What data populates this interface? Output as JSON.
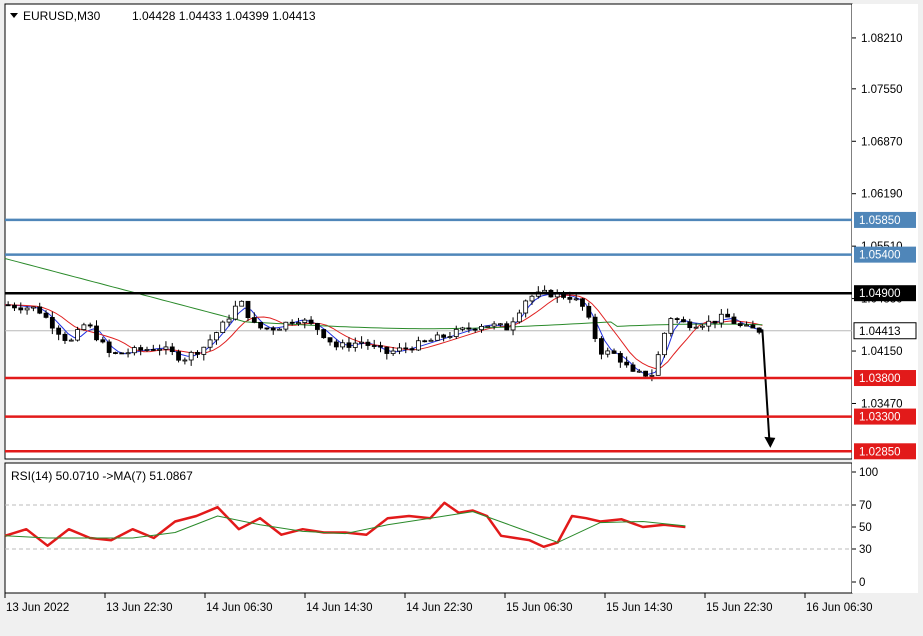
{
  "header": {
    "symbol": "EURUSD,M30",
    "ohlc": "1.04428 1.04433 1.04399 1.04413"
  },
  "rsi_header": "RSI(14) 50.0710  ->MA(7) 51.0867",
  "colors": {
    "resistance_line": "#4f86b9",
    "pivot_line": "#000000",
    "support_line": "#e21a1a",
    "ma_fast": "#1f2fe0",
    "ma_mid": "#e02020",
    "ma_slow": "#2a8a2a",
    "rsi_line": "#e21a1a",
    "rsi_ma": "#2a8a2a"
  },
  "chart_data": [
    {
      "type": "candlestick",
      "symbol": "EURUSD",
      "timeframe": "M30",
      "ylim": [
        1.0275,
        1.0865
      ],
      "y_ticks": [
        "1.08210",
        "1.07550",
        "1.06870",
        "1.06190",
        "1.05510",
        "1.04830",
        "1.04150",
        "1.03470"
      ],
      "x_ticks": [
        "13 Jun 2022",
        "13 Jun 22:30",
        "14 Jun 06:30",
        "14 Jun 14:30",
        "14 Jun 22:30",
        "15 Jun 06:30",
        "15 Jun 14:30",
        "15 Jun 22:30",
        "16 Jun 06:30"
      ],
      "current_price": "1.04413",
      "price_path": [
        [
          0,
          1.0475
        ],
        [
          0.04,
          1.047
        ],
        [
          0.08,
          1.0425
        ],
        [
          0.1,
          1.0452
        ],
        [
          0.13,
          1.041
        ],
        [
          0.16,
          1.0415
        ],
        [
          0.19,
          1.042
        ],
        [
          0.22,
          1.0405
        ],
        [
          0.245,
          1.042
        ],
        [
          0.27,
          1.045
        ],
        [
          0.29,
          1.048
        ],
        [
          0.31,
          1.0445
        ],
        [
          0.335,
          1.0445
        ],
        [
          0.36,
          1.0458
        ],
        [
          0.385,
          1.0445
        ],
        [
          0.41,
          1.042
        ],
        [
          0.44,
          1.0427
        ],
        [
          0.47,
          1.0412
        ],
        [
          0.5,
          1.042
        ],
        [
          0.53,
          1.043
        ],
        [
          0.56,
          1.044
        ],
        [
          0.59,
          1.045
        ],
        [
          0.62,
          1.0445
        ],
        [
          0.645,
          1.0485
        ],
        [
          0.67,
          1.049
        ],
        [
          0.7,
          1.0485
        ],
        [
          0.715,
          1.047
        ],
        [
          0.735,
          1.0415
        ],
        [
          0.755,
          1.041
        ],
        [
          0.775,
          1.0385
        ],
        [
          0.8,
          1.0385
        ],
        [
          0.82,
          1.046
        ],
        [
          0.84,
          1.045
        ],
        [
          0.87,
          1.0452
        ],
        [
          0.89,
          1.046
        ],
        [
          0.91,
          1.0445
        ],
        [
          0.935,
          1.04413
        ]
      ],
      "hlines": [
        {
          "price": 1.0585,
          "label": "1.05850",
          "kind": "resistance"
        },
        {
          "price": 1.054,
          "label": "1.05400",
          "kind": "resistance"
        },
        {
          "price": 1.049,
          "label": "1.04900",
          "kind": "pivot"
        },
        {
          "price": 1.038,
          "label": "1.03800",
          "kind": "support"
        },
        {
          "price": 1.033,
          "label": "1.03300",
          "kind": "support"
        },
        {
          "price": 1.0285,
          "label": "1.02850",
          "kind": "support"
        }
      ],
      "annotation": "down-arrow",
      "grid": false
    },
    {
      "type": "line",
      "indicator": "RSI(14)",
      "ylim": [
        0,
        100
      ],
      "y_ticks": [
        "100",
        "70",
        "50",
        "30",
        "0"
      ],
      "levels": [
        70,
        30
      ],
      "series": [
        {
          "name": "RSI(14)",
          "x": [
            0,
            0.03,
            0.06,
            0.09,
            0.12,
            0.15,
            0.18,
            0.21,
            0.24,
            0.27,
            0.3,
            0.33,
            0.36,
            0.39,
            0.42,
            0.45,
            0.48,
            0.51,
            0.54,
            0.57,
            0.6,
            0.62,
            0.64,
            0.66,
            0.68,
            0.7,
            0.72,
            0.74,
            0.76,
            0.78,
            0.8,
            0.82,
            0.84,
            0.87,
            0.9,
            0.93,
            0.96
          ],
          "values": [
            42,
            48,
            33,
            48,
            40,
            38,
            48,
            40,
            55,
            60,
            68,
            48,
            58,
            43,
            48,
            45,
            45,
            43,
            58,
            60,
            58,
            72,
            63,
            65,
            60,
            42,
            40,
            38,
            32,
            36,
            60,
            58,
            55,
            57,
            50,
            52,
            50
          ]
        },
        {
          "name": "MA(7)",
          "x": [
            0,
            0.06,
            0.12,
            0.18,
            0.24,
            0.3,
            0.36,
            0.42,
            0.48,
            0.54,
            0.6,
            0.66,
            0.72,
            0.78,
            0.84,
            0.9,
            0.96
          ],
          "values": [
            42,
            40,
            40,
            40,
            45,
            60,
            52,
            46,
            44,
            52,
            58,
            64,
            50,
            36,
            54,
            55,
            51
          ]
        }
      ]
    }
  ]
}
